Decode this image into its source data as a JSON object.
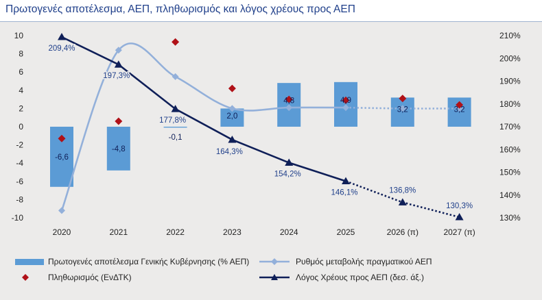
{
  "title": "Πρωτογενές αποτέλεσμα, ΑΕΠ, πληθωρισμός και λόγος χρέους προς ΑΕΠ",
  "colors": {
    "title": "#1f3f8a",
    "bars": "#5b9bd5",
    "gdp_growth": "#93b0da",
    "inflation": "#b01118",
    "debt": "#0f1f58",
    "background": "#ecebea"
  },
  "chart_data": {
    "type": "bar+line",
    "categories": [
      "2020",
      "2021",
      "2022",
      "2023",
      "2024",
      "2025",
      "2026 (π)",
      "2027 (π)"
    ],
    "y_left": {
      "min": -10,
      "max": 10,
      "ticks": [
        "10",
        "8",
        "6",
        "4",
        "2",
        "0",
        "-2",
        "-4",
        "-6",
        "-8",
        "-10"
      ]
    },
    "y_right": {
      "min": 130,
      "max": 210,
      "ticks": [
        "210%",
        "200%",
        "190%",
        "180%",
        "170%",
        "160%",
        "150%",
        "140%",
        "130%"
      ]
    },
    "grid": false,
    "legend_position": "bottom",
    "series": [
      {
        "name": "Πρωτογενές αποτέλεσμα Γενικής Κυβέρνησης (% ΑΕΠ)",
        "kind": "bar",
        "axis": "left",
        "values": [
          -6.6,
          -4.8,
          -0.1,
          2.0,
          4.8,
          4.9,
          3.2,
          3.2
        ],
        "labels": [
          "-6,6",
          "-4,8",
          "-0,1",
          "2,0",
          "4,8",
          "4,9",
          "3,2",
          "3,2"
        ]
      },
      {
        "name": "Ρυθμός μεταβολής πραγματικού ΑΕΠ",
        "kind": "line",
        "axis": "left",
        "dashed_from_index": 5,
        "values": [
          -9.2,
          8.4,
          5.5,
          2.0,
          2.1,
          2.1,
          2.0,
          2.0
        ]
      },
      {
        "name": "Πληθωρισμός (ΕνΔΤΚ)",
        "kind": "marker",
        "axis": "left",
        "values": [
          -1.3,
          0.6,
          9.3,
          4.2,
          3.0,
          2.9,
          3.1,
          2.4
        ]
      },
      {
        "name": "Λόγος Χρέους προς ΑΕΠ (δεσ. άξ.)",
        "kind": "line",
        "axis": "right",
        "dashed_from_index": 5,
        "values": [
          209.4,
          197.3,
          177.8,
          164.3,
          154.2,
          146.1,
          136.8,
          130.3
        ],
        "labels": [
          "209,4%",
          "197,3%",
          "177,8%",
          "164,3%",
          "154,2%",
          "146,1%",
          "136,8%",
          "130,3%"
        ]
      }
    ]
  },
  "legend": {
    "bars": "Πρωτογενές αποτέλεσμα Γενικής Κυβέρνησης (% ΑΕΠ)",
    "gdp_growth": "Ρυθμός μεταβολής πραγματικού ΑΕΠ",
    "inflation": "Πληθωρισμός (ΕνΔΤΚ)",
    "debt": "Λόγος Χρέους προς ΑΕΠ (δεσ. άξ.)"
  }
}
